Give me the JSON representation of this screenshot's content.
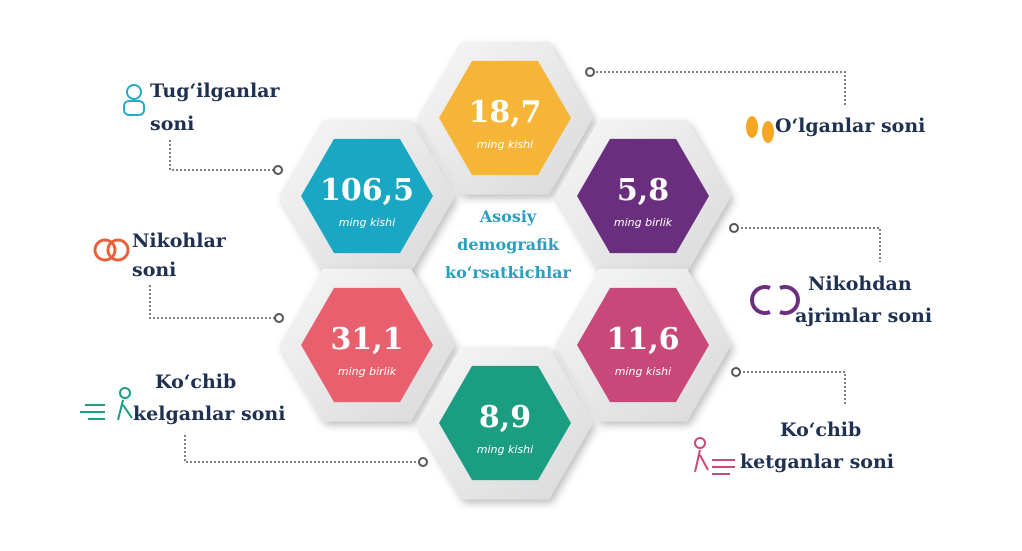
{
  "title": [
    "Asosiy",
    "demografik",
    "ko‘rsatkichlar"
  ],
  "items": [
    {
      "value": "18,7",
      "unit": "ming kishi",
      "label": [
        "O‘lganlar soni"
      ]
    },
    {
      "value": "106,5",
      "unit": "ming kishi",
      "label": [
        "Tug‘ilganlar",
        "soni"
      ]
    },
    {
      "value": "5,8",
      "unit": "ming birlik",
      "label": [
        "Nikohdan",
        "ajrimlar soni"
      ]
    },
    {
      "value": "31,1",
      "unit": "ming birlik",
      "label": [
        "Nikohlar",
        "soni"
      ]
    },
    {
      "value": "11,6",
      "unit": "ming kishi",
      "label": [
        "Ko‘chib",
        "ketganlar soni"
      ]
    },
    {
      "value": "8,9",
      "unit": "ming kishi",
      "label": [
        "Ko‘chib",
        "kelganlar soni"
      ]
    }
  ]
}
